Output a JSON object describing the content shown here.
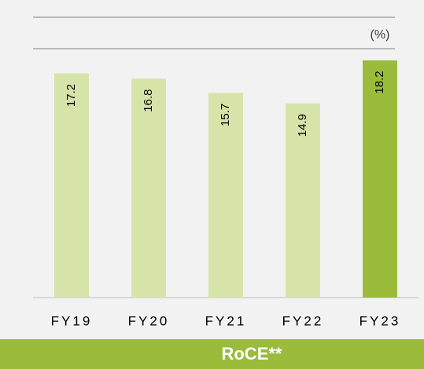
{
  "chart_data": {
    "type": "bar",
    "title": "RoCE**",
    "unit_label": "(%)",
    "categories": [
      "FY19",
      "FY20",
      "FY21",
      "FY22",
      "FY23"
    ],
    "values": [
      17.2,
      16.8,
      15.7,
      14.9,
      18.2
    ],
    "colors": [
      "#d7e4a9",
      "#d7e4a9",
      "#d7e4a9",
      "#d7e4a9",
      "#9bbb3b"
    ],
    "ylim": [
      0,
      20
    ]
  }
}
